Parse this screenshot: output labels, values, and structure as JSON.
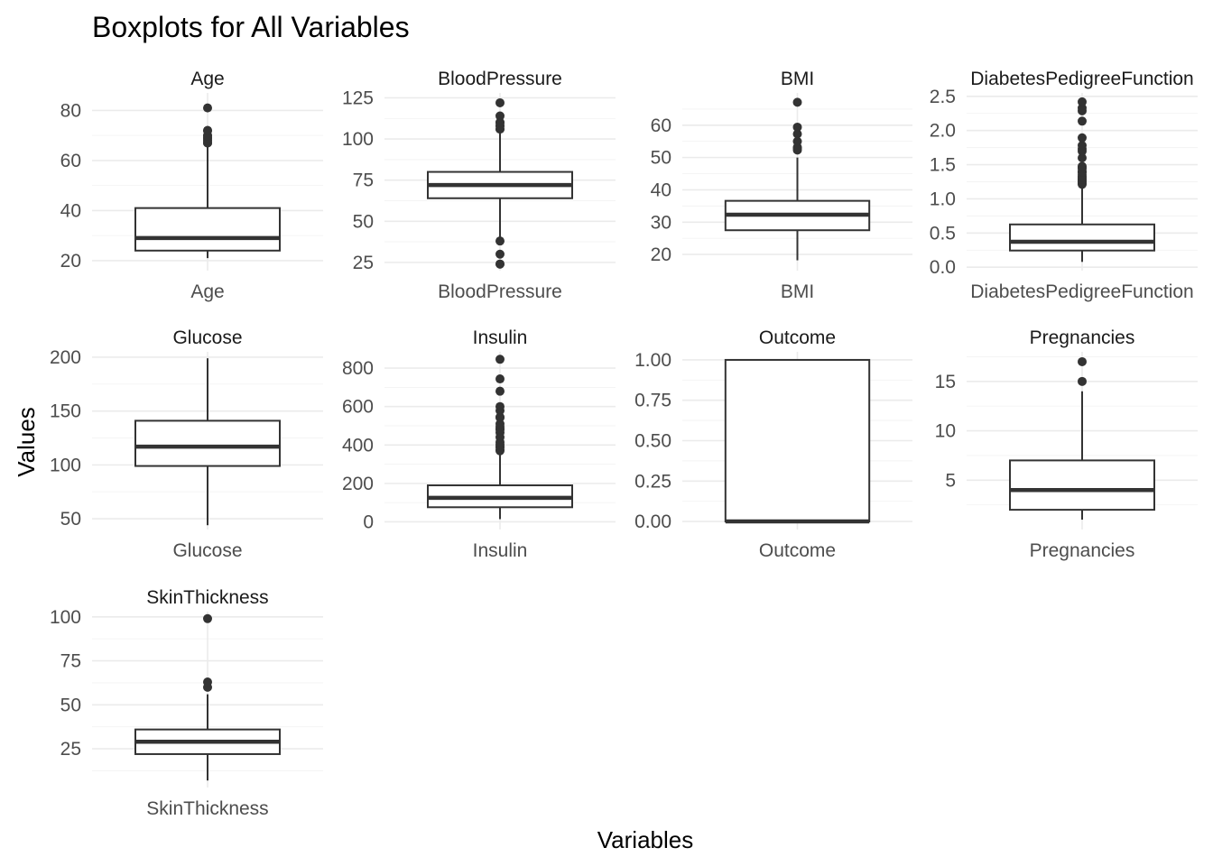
{
  "chart_data": {
    "type": "boxplot",
    "title": "Boxplots for All Variables",
    "xlabel": "Variables",
    "ylabel": "Values",
    "facet_layout": "wrap, 4 columns, free scales",
    "panels": [
      {
        "name": "Age",
        "category": "Age",
        "ylim": [
          16,
          87
        ],
        "breaks": [
          20,
          40,
          60,
          80
        ],
        "tick_labels": [
          "20",
          "40",
          "60",
          "80"
        ],
        "whisker_low": 21,
        "q1": 24,
        "median": 29,
        "q3": 41,
        "whisker_high": 66,
        "outliers": [
          67,
          67,
          68,
          68,
          69,
          69,
          70,
          70,
          72,
          72,
          81
        ]
      },
      {
        "name": "BloodPressure",
        "category": "BloodPressure",
        "ylim": [
          20,
          128
        ],
        "breaks": [
          25,
          50,
          75,
          100,
          125
        ],
        "tick_labels": [
          "25",
          "50",
          "75",
          "100",
          "125"
        ],
        "whisker_low": 40,
        "q1": 64,
        "median": 72,
        "q3": 80,
        "whisker_high": 104,
        "outliers": [
          24,
          24,
          30,
          38,
          106,
          106,
          108,
          108,
          110,
          110,
          114,
          122
        ]
      },
      {
        "name": "BMI",
        "category": "BMI",
        "ylim": [
          15,
          70
        ],
        "breaks": [
          20,
          30,
          40,
          50,
          60
        ],
        "tick_labels": [
          "20",
          "30",
          "40",
          "50",
          "60"
        ],
        "whisker_low": 18.2,
        "q1": 27.5,
        "median": 32.3,
        "q3": 36.6,
        "whisker_high": 50,
        "outliers": [
          52.3,
          52.9,
          53.2,
          55,
          57.3,
          59.4,
          67.1
        ]
      },
      {
        "name": "DiabetesPedigreeFunction",
        "category": "DiabetesPedigreeFunction",
        "ylim": [
          -0.05,
          2.55
        ],
        "breaks": [
          0.0,
          0.5,
          1.0,
          1.5,
          2.0,
          2.5
        ],
        "tick_labels": [
          "0.0",
          "0.5",
          "1.0",
          "1.5",
          "2.0",
          "2.5"
        ],
        "whisker_low": 0.078,
        "q1": 0.244,
        "median": 0.373,
        "q3": 0.626,
        "whisker_high": 1.191,
        "outliers": [
          1.213,
          1.224,
          1.251,
          1.258,
          1.282,
          1.29,
          1.318,
          1.321,
          1.353,
          1.39,
          1.394,
          1.4,
          1.441,
          1.461,
          1.476,
          1.6,
          1.698,
          1.731,
          1.781,
          1.893,
          2.137,
          2.288,
          2.329,
          2.42
        ]
      },
      {
        "name": "Glucose",
        "category": "Glucose",
        "ylim": [
          40,
          205
        ],
        "breaks": [
          50,
          100,
          150,
          200
        ],
        "tick_labels": [
          "50",
          "100",
          "150",
          "200"
        ],
        "whisker_low": 44,
        "q1": 99,
        "median": 117,
        "q3": 141,
        "whisker_high": 199,
        "outliers": []
      },
      {
        "name": "Insulin",
        "category": "Insulin",
        "ylim": [
          -40,
          885
        ],
        "breaks": [
          0,
          200,
          400,
          600,
          800
        ],
        "tick_labels": [
          "0",
          "200",
          "400",
          "600",
          "800"
        ],
        "whisker_low": 14,
        "q1": 76,
        "median": 125,
        "q3": 190,
        "whisker_high": 360,
        "outliers": [
          370,
          375,
          387,
          392,
          402,
          415,
          440,
          465,
          480,
          485,
          495,
          510,
          543,
          545,
          579,
          600,
          680,
          744,
          846
        ]
      },
      {
        "name": "Outcome",
        "category": "Outcome",
        "ylim": [
          -0.05,
          1.05
        ],
        "breaks": [
          0.0,
          0.25,
          0.5,
          0.75,
          1.0
        ],
        "tick_labels": [
          "0.00",
          "0.25",
          "0.50",
          "0.75",
          "1.00"
        ],
        "whisker_low": 0,
        "q1": 0,
        "median": 0,
        "q3": 1,
        "whisker_high": 1,
        "outliers": []
      },
      {
        "name": "Pregnancies",
        "category": "Pregnancies",
        "ylim": [
          0,
          18
        ],
        "breaks": [
          5,
          10,
          15
        ],
        "tick_labels": [
          "5",
          "10",
          "15"
        ],
        "whisker_low": 1,
        "q1": 2,
        "median": 4,
        "q3": 7,
        "whisker_high": 14,
        "outliers": [
          15,
          17
        ]
      },
      {
        "name": "SkinThickness",
        "category": "SkinThickness",
        "ylim": [
          3,
          103
        ],
        "breaks": [
          25,
          50,
          75,
          100
        ],
        "tick_labels": [
          "25",
          "50",
          "75",
          "100"
        ],
        "whisker_low": 7,
        "q1": 22,
        "median": 29,
        "q3": 36,
        "whisker_high": 56,
        "outliers": [
          60,
          63,
          99
        ]
      }
    ]
  }
}
